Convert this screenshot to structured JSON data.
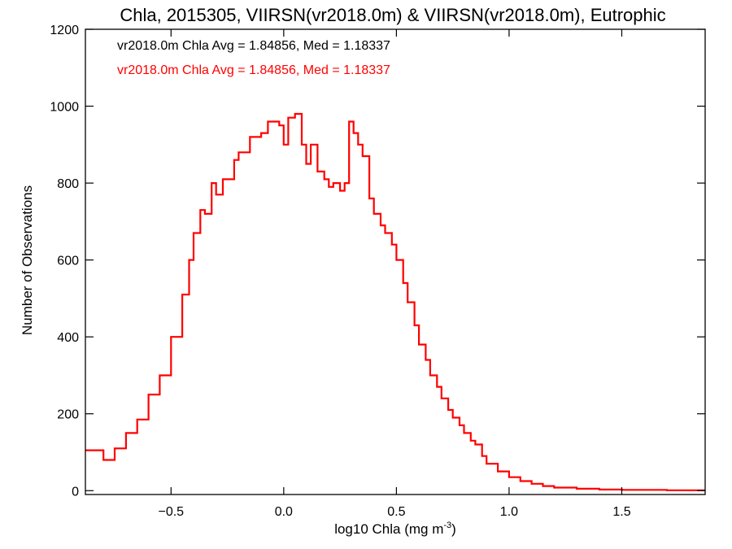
{
  "chart_data": {
    "type": "line",
    "title": "Chla, 2015305, VIIRSN(vr2018.0m) & VIIRSN(vr2018.0m), Eutrophic",
    "xlabel_main": "log10 Chla (mg m",
    "xlabel_sup": "-3",
    "xlabel_close": ")",
    "ylabel": "Number of Observations",
    "xlim": [
      -0.88,
      1.87
    ],
    "ylim": [
      -10,
      1200
    ],
    "x_ticks": [
      -0.5,
      0.0,
      0.5,
      1.0,
      1.5
    ],
    "x_tick_labels": [
      "−0.5",
      "0.0",
      "0.5",
      "1.0",
      "1.5"
    ],
    "y_ticks": [
      0,
      200,
      400,
      600,
      800,
      1000,
      1200
    ],
    "y_tick_labels": [
      "0",
      "200",
      "400",
      "600",
      "800",
      "1000",
      "1200"
    ],
    "grid": false,
    "annotations": [
      {
        "text": "vr2018.0m Chla Avg = 1.84856, Med = 1.18337",
        "color": "#000000"
      },
      {
        "text": "vr2018.0m Chla Avg = 1.84856, Med = 1.18337",
        "color": "#ff0000"
      }
    ],
    "series": [
      {
        "color": "#ff0000",
        "step": true,
        "x": [
          -0.88,
          -0.8,
          -0.75,
          -0.7,
          -0.65,
          -0.6,
          -0.55,
          -0.5,
          -0.45,
          -0.42,
          -0.4,
          -0.37,
          -0.35,
          -0.32,
          -0.3,
          -0.27,
          -0.25,
          -0.22,
          -0.2,
          -0.17,
          -0.15,
          -0.12,
          -0.1,
          -0.07,
          -0.05,
          -0.02,
          0.0,
          0.02,
          0.05,
          0.08,
          0.1,
          0.12,
          0.15,
          0.18,
          0.2,
          0.22,
          0.25,
          0.27,
          0.29,
          0.31,
          0.33,
          0.35,
          0.38,
          0.4,
          0.43,
          0.45,
          0.48,
          0.5,
          0.53,
          0.55,
          0.58,
          0.6,
          0.63,
          0.65,
          0.68,
          0.7,
          0.73,
          0.75,
          0.78,
          0.8,
          0.83,
          0.85,
          0.88,
          0.9,
          0.95,
          1.0,
          1.05,
          1.1,
          1.15,
          1.2,
          1.3,
          1.4,
          1.5,
          1.6,
          1.7,
          1.87
        ],
        "values": [
          105,
          80,
          110,
          150,
          185,
          250,
          300,
          400,
          510,
          600,
          670,
          730,
          720,
          800,
          770,
          810,
          810,
          860,
          880,
          880,
          920,
          920,
          930,
          960,
          960,
          950,
          900,
          970,
          980,
          900,
          850,
          900,
          830,
          810,
          790,
          800,
          780,
          800,
          960,
          930,
          900,
          870,
          760,
          720,
          690,
          670,
          640,
          600,
          540,
          490,
          430,
          380,
          340,
          300,
          270,
          240,
          210,
          190,
          170,
          150,
          130,
          120,
          90,
          70,
          50,
          35,
          25,
          18,
          12,
          8,
          5,
          3,
          2,
          2,
          1,
          1
        ]
      }
    ]
  }
}
